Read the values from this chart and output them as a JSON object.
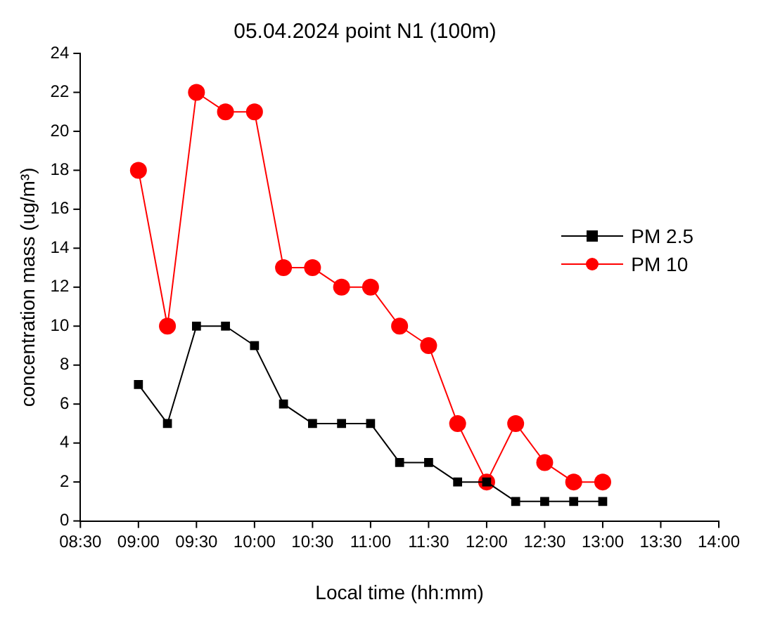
{
  "chart_data": {
    "type": "line",
    "title": "05.04.2024 point N1 (100m)",
    "xlabel": "Local time (hh:mm)",
    "ylabel": "concentration mass (ug/m³)",
    "x": [
      9,
      9.25,
      9.5,
      9.75,
      10,
      10.25,
      10.5,
      10.75,
      11,
      11.25,
      11.5,
      11.75,
      12,
      12.25,
      12.5,
      12.75,
      13
    ],
    "series": [
      {
        "name": "PM 2.5",
        "color": "#000000",
        "marker": "square",
        "values": [
          7,
          5,
          10,
          10,
          9,
          6,
          5,
          5,
          5,
          3,
          3,
          2,
          2,
          1,
          1,
          1,
          1
        ]
      },
      {
        "name": "PM 10",
        "color": "#ff0000",
        "marker": "circle",
        "values": [
          18,
          10,
          22,
          21,
          21,
          13,
          13,
          12,
          12,
          10,
          9,
          5,
          2,
          5,
          3,
          2,
          2
        ]
      }
    ],
    "xlim": [
      8.5,
      14
    ],
    "xticks": [
      {
        "value": 8.5,
        "label": "08:30"
      },
      {
        "value": 9,
        "label": "09:00"
      },
      {
        "value": 9.5,
        "label": "09:30"
      },
      {
        "value": 10,
        "label": "10:00"
      },
      {
        "value": 10.5,
        "label": "10:30"
      },
      {
        "value": 11,
        "label": "11:00"
      },
      {
        "value": 11.5,
        "label": "11:30"
      },
      {
        "value": 12,
        "label": "12:00"
      },
      {
        "value": 12.5,
        "label": "12:30"
      },
      {
        "value": 13,
        "label": "13:00"
      },
      {
        "value": 13.5,
        "label": "13:30"
      },
      {
        "value": 14,
        "label": "14:00"
      }
    ],
    "ylim": [
      0,
      24
    ],
    "yticks": [
      0,
      2,
      4,
      6,
      8,
      10,
      12,
      14,
      16,
      18,
      20,
      22,
      24
    ],
    "grid": false,
    "legend": "right",
    "line_style": "solid"
  }
}
